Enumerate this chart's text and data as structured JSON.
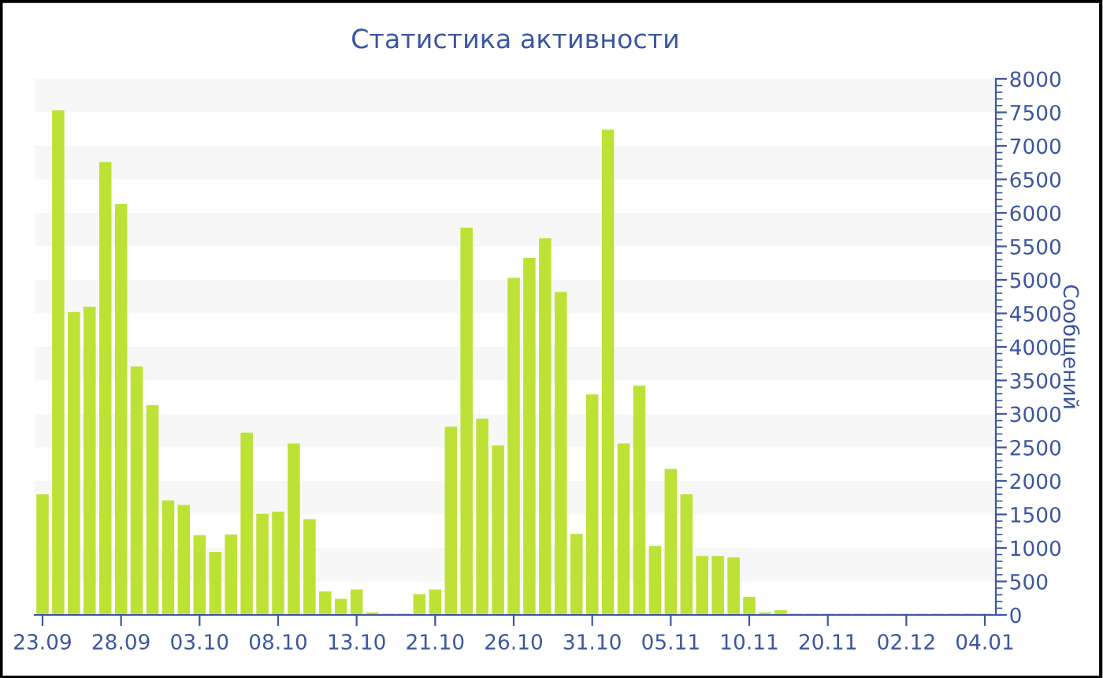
{
  "chart_data": {
    "type": "bar",
    "title": "Статистика активности",
    "ylabel": "Сообщений",
    "categories": [
      "23.09",
      null,
      null,
      null,
      null,
      "28.09",
      null,
      null,
      null,
      null,
      "03.10",
      null,
      null,
      null,
      null,
      "08.10",
      null,
      null,
      null,
      null,
      "13.10",
      null,
      null,
      null,
      null,
      "21.10",
      null,
      null,
      null,
      null,
      "26.10",
      null,
      null,
      null,
      null,
      "31.10",
      null,
      null,
      null,
      null,
      "05.11",
      null,
      null,
      null,
      null,
      "10.11",
      null,
      null,
      null,
      null,
      "20.11",
      null,
      null,
      null,
      null,
      "02.12",
      null,
      null,
      null,
      null,
      "04.01"
    ],
    "values": [
      1800,
      7530,
      4520,
      4600,
      6760,
      6130,
      3710,
      3130,
      1710,
      1640,
      1190,
      940,
      1200,
      2720,
      1510,
      1540,
      2560,
      1430,
      350,
      240,
      380,
      40,
      20,
      20,
      310,
      380,
      2810,
      5780,
      2930,
      2530,
      5030,
      5330,
      5620,
      4820,
      1210,
      3290,
      7240,
      2560,
      3420,
      1030,
      2180,
      1800,
      880,
      880,
      860,
      270,
      40,
      70,
      20,
      20,
      20,
      20,
      20,
      20,
      20,
      20,
      20,
      20,
      20,
      20,
      20
    ],
    "color": "#bce236",
    "ylim": [
      0,
      8000
    ],
    "yticks": [
      0,
      500,
      1000,
      1500,
      2000,
      2500,
      3000,
      3500,
      4000,
      4500,
      5000,
      5500,
      6000,
      6500,
      7000,
      7500,
      8000
    ],
    "bands": [
      {
        "axis": "y",
        "from": 500,
        "to": 1000,
        "color": "#f7f7f7"
      },
      {
        "axis": "y",
        "from": 1500,
        "to": 2000,
        "color": "#f7f7f7"
      },
      {
        "axis": "y",
        "from": 2500,
        "to": 3000,
        "color": "#f7f7f7"
      },
      {
        "axis": "y",
        "from": 3500,
        "to": 4000,
        "color": "#f7f7f7"
      },
      {
        "axis": "y",
        "from": 4500,
        "to": 5000,
        "color": "#f7f7f7"
      },
      {
        "axis": "y",
        "from": 5500,
        "to": 6000,
        "color": "#f7f7f7"
      },
      {
        "axis": "y",
        "from": 6500,
        "to": 7000,
        "color": "#f7f7f7"
      },
      {
        "axis": "y",
        "from": 7500,
        "to": 8000,
        "color": "#f7f7f7"
      }
    ],
    "grid": false,
    "legend": false
  }
}
